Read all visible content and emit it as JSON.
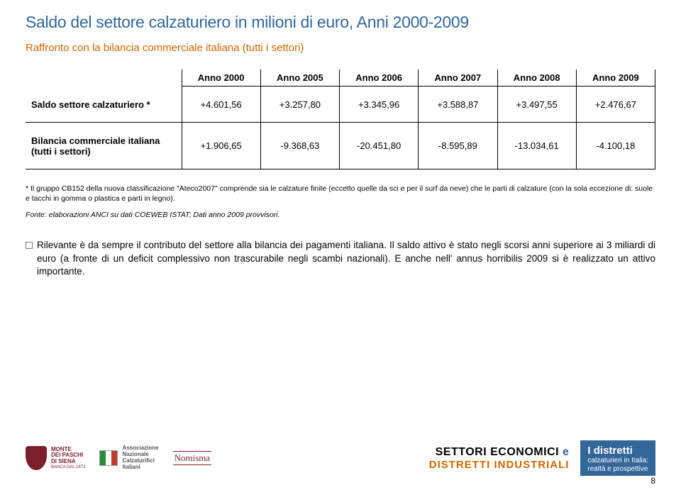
{
  "title": "Saldo del settore calzaturiero in milioni di euro, Anni 2000-2009",
  "subtitle": "Raffronto con la bilancia commerciale italiana (tutti i settori)",
  "table": {
    "columns": [
      "Anno 2000",
      "Anno 2005",
      "Anno 2006",
      "Anno 2007",
      "Anno 2008",
      "Anno 2009"
    ],
    "rows": [
      {
        "label": "Saldo settore calzaturiero *",
        "values": [
          "+4.601,56",
          "+3.257,80",
          "+3.345,96",
          "+3.588,87",
          "+3.497,55",
          "+2.476,67"
        ]
      },
      {
        "label": "Bilancia commerciale italiana (tutti i settori)",
        "values": [
          "+1.906,65",
          "-9.368,63",
          "-20.451,80",
          "-8.595,89",
          "-13.034,61",
          "-4.100,18"
        ]
      }
    ]
  },
  "footnote": "* Il gruppo CB152 della nuova classificazione \"Ateco2007\" comprende sia le calzature finite (eccetto quelle da sci e per il surf da neve) che le parti di calzature (con la sola eccezione di: suole e tacchi in gomma o plastica e parti in legno).",
  "source": "Fonte: elaborazioni ANCI su dati COEWEB ISTAT; Dati anno 2009 provvisori.",
  "body_text": "Rilevante è da sempre il contributo del settore alla bilancia dei pagamenti italiana. Il saldo attivo è stato negli scorsi anni superiore ai 3 miliardi di euro (a fronte di un deficit complessivo non trascurabile negli scambi nazionali). E anche nell' annus horribilis 2009 si è realizzato un attivo importante.",
  "footer": {
    "mps_lines": [
      "MONTE",
      "DEI PASCHI",
      "DI SIENA",
      "BANCA DAL 1472"
    ],
    "anci_lines": [
      "Associazione",
      "Nazionale",
      "Calzaturifici",
      "Italiani"
    ],
    "nomisma": "Nomisma",
    "settori_line1_a": "SETTORI ECONOMICI",
    "settori_line1_b": " e",
    "settori_line2": "DISTRETTI INDUSTRIALI",
    "box_line1": "I distretti",
    "box_line2": "calzaturieri in Italia:",
    "box_line3": "realtà e prospettive",
    "page": "8"
  }
}
